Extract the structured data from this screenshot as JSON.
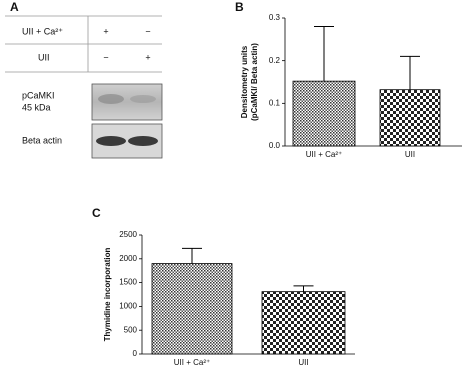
{
  "panel_a": {
    "label": "A",
    "table": {
      "rows": [
        [
          "UII + Ca²⁺",
          "+",
          "−"
        ],
        [
          "UII",
          "−",
          "+"
        ]
      ]
    },
    "blots": [
      [
        "pCaMKI",
        "45 kDa"
      ],
      [
        "Beta actin"
      ]
    ]
  },
  "chart_data": [
    {
      "type": "bar",
      "panel_label": "B",
      "ylabel": [
        "Densitometry units",
        "(pCaMKI/ Beta actin)"
      ],
      "categories": [
        "UII + Ca²⁺",
        "UII"
      ],
      "values": [
        0.152,
        0.132
      ],
      "error": [
        0.128,
        0.078
      ],
      "patterns": [
        "hatch",
        "checker"
      ],
      "ylim": [
        0,
        0.3
      ],
      "yticks": [
        {
          "value": 0,
          "label": "0.0"
        },
        0.1,
        0.2,
        0.3
      ]
    },
    {
      "type": "bar",
      "panel_label": "C",
      "ylabel": [
        "Thymidine incorporation"
      ],
      "categories": [
        "UII + Ca²⁺",
        "UII"
      ],
      "values": [
        1900,
        1310
      ],
      "error": [
        320,
        120
      ],
      "patterns": [
        "hatch",
        "checker"
      ],
      "ylim": [
        0,
        2500
      ],
      "yticks": [
        0,
        500,
        1000,
        1500,
        2000,
        2500
      ]
    }
  ]
}
